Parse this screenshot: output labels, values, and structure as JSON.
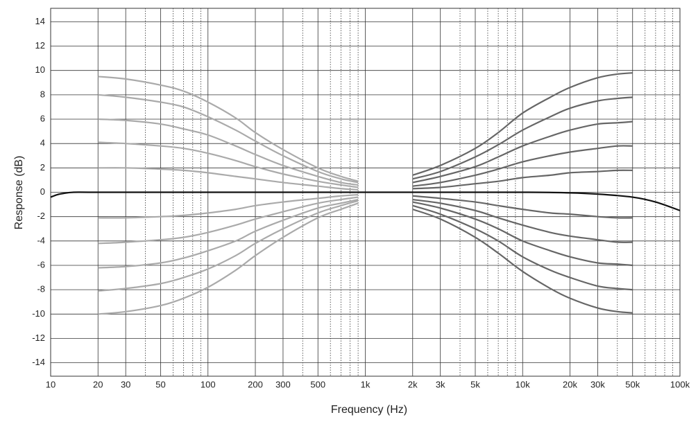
{
  "chart_data": {
    "type": "line",
    "xlabel": "Frequency (Hz)",
    "ylabel": "Response (dB)",
    "xscale": "log",
    "grid": true,
    "xlim": [
      10,
      100000
    ],
    "ylim": [
      -15.1,
      15.1
    ],
    "xticks": [
      10,
      20,
      30,
      50,
      100,
      200,
      300,
      500,
      {
        "value": 1000,
        "label": "1k"
      },
      {
        "value": 2000,
        "label": "2k"
      },
      {
        "value": 3000,
        "label": "3k"
      },
      {
        "value": 5000,
        "label": "5k"
      },
      {
        "value": 10000,
        "label": "10k"
      },
      {
        "value": 20000,
        "label": "20k"
      },
      {
        "value": 30000,
        "label": "30k"
      },
      {
        "value": 50000,
        "label": "50k"
      },
      {
        "value": 100000,
        "label": "100k"
      }
    ],
    "minor_xticks": [
      40,
      60,
      70,
      80,
      90,
      400,
      600,
      700,
      800,
      900,
      4000,
      6000,
      7000,
      8000,
      9000,
      40000,
      60000,
      70000,
      80000,
      90000
    ],
    "yticks": [
      -14,
      -12,
      -10,
      -8,
      -6,
      -4,
      -2,
      0,
      2,
      4,
      6,
      8,
      10,
      12,
      14
    ],
    "series": [
      {
        "color": "#aaaaaa",
        "x": [
          20,
          30,
          50,
          70,
          100,
          150,
          200,
          300,
          500,
          700,
          900
        ],
        "values": [
          9.5,
          9.3,
          8.8,
          8.3,
          7.4,
          6.1,
          4.9,
          3.5,
          2.0,
          1.3,
          0.9
        ]
      },
      {
        "color": "#aaaaaa",
        "x": [
          20,
          30,
          50,
          70,
          100,
          150,
          200,
          300,
          500,
          700,
          900
        ],
        "values": [
          8.0,
          7.8,
          7.4,
          7.0,
          6.2,
          5.1,
          4.2,
          3.0,
          1.7,
          1.1,
          0.8
        ]
      },
      {
        "color": "#aaaaaa",
        "x": [
          20,
          30,
          50,
          70,
          100,
          150,
          200,
          300,
          500,
          700,
          900
        ],
        "values": [
          6.0,
          5.9,
          5.6,
          5.2,
          4.7,
          3.8,
          3.1,
          2.2,
          1.3,
          0.8,
          0.6
        ]
      },
      {
        "color": "#aaaaaa",
        "x": [
          20,
          30,
          50,
          70,
          100,
          150,
          200,
          300,
          500,
          700,
          900
        ],
        "values": [
          4.1,
          4.0,
          3.8,
          3.6,
          3.2,
          2.6,
          2.1,
          1.5,
          0.9,
          0.6,
          0.4
        ]
      },
      {
        "color": "#aaaaaa",
        "x": [
          20,
          30,
          50,
          70,
          100,
          150,
          200,
          300,
          500,
          700,
          900
        ],
        "values": [
          2.0,
          2.0,
          1.9,
          1.8,
          1.6,
          1.3,
          1.1,
          0.8,
          0.5,
          0.3,
          0.2
        ]
      },
      {
        "color": "#aaaaaa",
        "x": [
          20,
          30,
          50,
          70,
          100,
          150,
          200,
          300,
          500,
          700,
          900
        ],
        "values": [
          -2.1,
          -2.1,
          -2.0,
          -1.9,
          -1.7,
          -1.4,
          -1.1,
          -0.8,
          -0.5,
          -0.3,
          -0.2
        ]
      },
      {
        "color": "#aaaaaa",
        "x": [
          20,
          30,
          50,
          70,
          100,
          150,
          200,
          300,
          500,
          700,
          900
        ],
        "values": [
          -4.2,
          -4.1,
          -3.9,
          -3.7,
          -3.3,
          -2.7,
          -2.2,
          -1.6,
          -0.9,
          -0.6,
          -0.4
        ]
      },
      {
        "color": "#aaaaaa",
        "x": [
          20,
          30,
          50,
          70,
          100,
          150,
          200,
          300,
          500,
          700,
          900
        ],
        "values": [
          -6.2,
          -6.1,
          -5.8,
          -5.4,
          -4.8,
          -4.0,
          -3.2,
          -2.3,
          -1.3,
          -0.9,
          -0.6
        ]
      },
      {
        "color": "#aaaaaa",
        "x": [
          20,
          30,
          50,
          70,
          100,
          150,
          200,
          300,
          500,
          700,
          900
        ],
        "values": [
          -8.1,
          -7.9,
          -7.5,
          -7.0,
          -6.3,
          -5.2,
          -4.2,
          -3.0,
          -1.7,
          -1.1,
          -0.7
        ]
      },
      {
        "color": "#aaaaaa",
        "x": [
          20,
          30,
          50,
          70,
          100,
          150,
          200,
          300,
          500,
          700,
          900
        ],
        "values": [
          -10.0,
          -9.8,
          -9.3,
          -8.7,
          -7.8,
          -6.4,
          -5.2,
          -3.7,
          -2.1,
          -1.4,
          -0.9
        ]
      },
      {
        "color": "#666666",
        "x": [
          2000,
          3000,
          5000,
          7000,
          10000,
          15000,
          20000,
          30000,
          40000,
          50000
        ],
        "values": [
          1.4,
          2.2,
          3.6,
          4.9,
          6.5,
          7.8,
          8.6,
          9.4,
          9.7,
          9.8
        ]
      },
      {
        "color": "#666666",
        "x": [
          2000,
          3000,
          5000,
          7000,
          10000,
          15000,
          20000,
          30000,
          40000,
          50000
        ],
        "values": [
          1.1,
          1.7,
          2.9,
          3.9,
          5.1,
          6.2,
          6.9,
          7.5,
          7.7,
          7.8
        ]
      },
      {
        "color": "#666666",
        "x": [
          2000,
          3000,
          5000,
          7000,
          10000,
          15000,
          20000,
          30000,
          40000,
          50000
        ],
        "values": [
          0.8,
          1.3,
          2.1,
          2.9,
          3.8,
          4.6,
          5.1,
          5.6,
          5.7,
          5.8
        ]
      },
      {
        "color": "#666666",
        "x": [
          2000,
          3000,
          5000,
          7000,
          10000,
          15000,
          20000,
          30000,
          40000,
          50000
        ],
        "values": [
          0.5,
          0.8,
          1.4,
          1.9,
          2.5,
          3.0,
          3.3,
          3.6,
          3.8,
          3.8
        ]
      },
      {
        "color": "#666666",
        "x": [
          2000,
          3000,
          5000,
          7000,
          10000,
          15000,
          20000,
          30000,
          40000,
          50000
        ],
        "values": [
          0.3,
          0.4,
          0.7,
          0.9,
          1.2,
          1.4,
          1.6,
          1.7,
          1.8,
          1.8
        ]
      },
      {
        "color": "#666666",
        "x": [
          2000,
          3000,
          5000,
          7000,
          10000,
          15000,
          20000,
          30000,
          40000,
          50000
        ],
        "values": [
          -0.3,
          -0.5,
          -0.8,
          -1.1,
          -1.4,
          -1.7,
          -1.8,
          -2.0,
          -2.1,
          -2.1
        ]
      },
      {
        "color": "#666666",
        "x": [
          2000,
          3000,
          5000,
          7000,
          10000,
          15000,
          20000,
          30000,
          40000,
          50000
        ],
        "values": [
          -0.6,
          -0.9,
          -1.5,
          -2.1,
          -2.7,
          -3.3,
          -3.6,
          -3.9,
          -4.1,
          -4.1
        ]
      },
      {
        "color": "#666666",
        "x": [
          2000,
          3000,
          5000,
          7000,
          10000,
          15000,
          20000,
          30000,
          40000,
          50000
        ],
        "values": [
          -0.8,
          -1.3,
          -2.2,
          -3.0,
          -4.0,
          -4.8,
          -5.3,
          -5.8,
          -5.9,
          -6.0
        ]
      },
      {
        "color": "#666666",
        "x": [
          2000,
          3000,
          5000,
          7000,
          10000,
          15000,
          20000,
          30000,
          40000,
          50000
        ],
        "values": [
          -1.1,
          -1.8,
          -3.0,
          -4.0,
          -5.3,
          -6.4,
          -7.0,
          -7.7,
          -7.9,
          -8.0
        ]
      },
      {
        "color": "#666666",
        "x": [
          2000,
          3000,
          5000,
          7000,
          10000,
          15000,
          20000,
          30000,
          40000,
          50000
        ],
        "values": [
          -1.4,
          -2.2,
          -3.7,
          -5.0,
          -6.5,
          -7.9,
          -8.7,
          -9.5,
          -9.8,
          -9.9
        ]
      },
      {
        "color": "#111111",
        "x": [
          10,
          11,
          12,
          14,
          20,
          100,
          1000,
          10000,
          20000,
          30000,
          50000,
          70000,
          100000
        ],
        "values": [
          -0.4,
          -0.2,
          -0.1,
          0,
          0,
          0,
          0,
          0,
          -0.05,
          -0.15,
          -0.4,
          -0.8,
          -1.5
        ]
      }
    ]
  }
}
